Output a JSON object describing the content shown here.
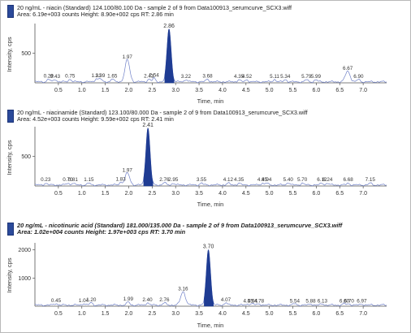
{
  "chart_data": [
    {
      "type": "line",
      "header_line1": "20 ng/mL - niacin (Standard) 124.100/80.100 Da - sample 2 of 9 from Data100913_serumcurve_SCX3.wiff",
      "header_line2": "Area: 6.19e+003 counts  Height: 8.90e+002 cps  RT: 2.86 min",
      "xlabel": "Time, min",
      "ylabel": "Intensity, cps",
      "xlim": [
        0.0,
        7.5
      ],
      "ylim": [
        0,
        1000
      ],
      "x_ticks": [
        "0.5",
        "1.0",
        "1.5",
        "2.0",
        "2.5",
        "3.0",
        "3.5",
        "4.0",
        "4.5",
        "5.0",
        "5.5",
        "6.0",
        "6.5",
        "7.0"
      ],
      "y_ticks": [
        500
      ],
      "main_peak": {
        "rt": 2.86,
        "height": 890,
        "width": 0.1
      },
      "minor_peaks": [
        {
          "x": 0.29,
          "y": 45,
          "label": "0.29"
        },
        {
          "x": 0.43,
          "y": 40,
          "label": "0.43"
        },
        {
          "x": 0.75,
          "y": 45,
          "label": "0.75"
        },
        {
          "x": 1.31,
          "y": 55,
          "label": "1.31"
        },
        {
          "x": 1.39,
          "y": 55,
          "label": "1.39"
        },
        {
          "x": 1.65,
          "y": 50,
          "label": "1.65"
        },
        {
          "x": 1.97,
          "y": 370,
          "label": "1.97"
        },
        {
          "x": 2.43,
          "y": 45,
          "label": "2.43"
        },
        {
          "x": 2.54,
          "y": 60,
          "label": "2.54"
        },
        {
          "x": 3.22,
          "y": 40,
          "label": "3.22"
        },
        {
          "x": 3.68,
          "y": 45,
          "label": "3.68"
        },
        {
          "x": 4.35,
          "y": 35,
          "label": "4.35"
        },
        {
          "x": 4.52,
          "y": 35,
          "label": "4.52"
        },
        {
          "x": 5.11,
          "y": 40,
          "label": "5.11"
        },
        {
          "x": 5.34,
          "y": 40,
          "label": "5.34"
        },
        {
          "x": 5.79,
          "y": 35,
          "label": "5.79"
        },
        {
          "x": 5.99,
          "y": 35,
          "label": "5.99"
        },
        {
          "x": 6.67,
          "y": 180,
          "label": "6.67"
        },
        {
          "x": 6.9,
          "y": 40,
          "label": "6.90"
        }
      ]
    },
    {
      "type": "line",
      "header_line1": "20 ng/mL - niacinamide (Standard) 123.100/80.000 Da - sample 2 of 9 from Data100913_serumcurve_SCX3.wiff",
      "header_line2": "Area: 4.52e+003 counts  Height: 9.59e+002 cps  RT: 2.41 min",
      "xlabel": "Time, min",
      "ylabel": "Intensity, cps",
      "xlim": [
        0.0,
        7.5
      ],
      "ylim": [
        0,
        1000
      ],
      "x_ticks": [
        "0.5",
        "1.0",
        "1.5",
        "2.0",
        "2.5",
        "3.0",
        "3.5",
        "4.0",
        "4.5",
        "5.0",
        "5.5",
        "6.0",
        "6.5",
        "7.0"
      ],
      "y_ticks": [
        500
      ],
      "main_peak": {
        "rt": 2.41,
        "height": 959,
        "width": 0.1
      },
      "minor_peaks": [
        {
          "x": 0.23,
          "y": 30,
          "label": "0.23"
        },
        {
          "x": 0.7,
          "y": 30,
          "label": "0.70"
        },
        {
          "x": 0.81,
          "y": 30,
          "label": "0.81"
        },
        {
          "x": 1.15,
          "y": 30,
          "label": "1.15"
        },
        {
          "x": 1.83,
          "y": 45,
          "label": "1.83"
        },
        {
          "x": 1.97,
          "y": 200,
          "label": "1.97"
        },
        {
          "x": 2.76,
          "y": 40,
          "label": "2.76"
        },
        {
          "x": 2.95,
          "y": 30,
          "label": "2.95"
        },
        {
          "x": 3.55,
          "y": 30,
          "label": "3.55"
        },
        {
          "x": 4.12,
          "y": 30,
          "label": "4.12"
        },
        {
          "x": 4.35,
          "y": 30,
          "label": "4.35"
        },
        {
          "x": 4.85,
          "y": 30,
          "label": "4.85"
        },
        {
          "x": 4.94,
          "y": 30,
          "label": "4.94"
        },
        {
          "x": 5.4,
          "y": 40,
          "label": "5.40"
        },
        {
          "x": 5.7,
          "y": 30,
          "label": "5.70"
        },
        {
          "x": 6.12,
          "y": 30,
          "label": "6.12"
        },
        {
          "x": 6.24,
          "y": 30,
          "label": "6.24"
        },
        {
          "x": 6.68,
          "y": 30,
          "label": "6.68"
        },
        {
          "x": 7.15,
          "y": 30,
          "label": "7.15"
        }
      ]
    },
    {
      "type": "line",
      "header_line1": "20 ng/mL - nicotinuric acid (Standard) 181.000/135.000 Da - sample 2 of 9 from Data100913_serumcurve_SCX3.wiff",
      "header_line2": "Area: 1.02e+004 counts  Height: 1.97e+003 cps  RT: 3.70 min",
      "xlabel": "Time, min",
      "ylabel": "Intensity, cps",
      "xlim": [
        0.0,
        7.5
      ],
      "ylim": [
        0,
        2250
      ],
      "x_ticks": [
        "0.5",
        "1.0",
        "1.5",
        "2.0",
        "2.5",
        "3.0",
        "3.5",
        "4.0",
        "4.5",
        "5.0",
        "5.5",
        "6.0",
        "6.5",
        "7.0"
      ],
      "y_ticks": [
        1000,
        2000
      ],
      "main_peak": {
        "rt": 3.7,
        "height": 1970,
        "width": 0.1
      },
      "minor_peaks": [
        {
          "x": 0.45,
          "y": 60,
          "label": "0.45"
        },
        {
          "x": 1.04,
          "y": 60,
          "label": "1.04"
        },
        {
          "x": 1.2,
          "y": 80,
          "label": "1.20"
        },
        {
          "x": 1.99,
          "y": 110,
          "label": "1.99"
        },
        {
          "x": 2.4,
          "y": 90,
          "label": "2.40"
        },
        {
          "x": 2.76,
          "y": 80,
          "label": "2.76"
        },
        {
          "x": 3.16,
          "y": 480,
          "label": "3.16"
        },
        {
          "x": 4.07,
          "y": 90,
          "label": "4.07"
        },
        {
          "x": 4.55,
          "y": 50,
          "label": "4.55"
        },
        {
          "x": 4.64,
          "y": 50,
          "label": "4.64"
        },
        {
          "x": 4.78,
          "y": 50,
          "label": "4.78"
        },
        {
          "x": 5.54,
          "y": 50,
          "label": "5.54"
        },
        {
          "x": 5.88,
          "y": 50,
          "label": "5.88"
        },
        {
          "x": 6.13,
          "y": 50,
          "label": "6.13"
        },
        {
          "x": 6.6,
          "y": 50,
          "label": "6.60"
        },
        {
          "x": 6.7,
          "y": 50,
          "label": "6.70"
        },
        {
          "x": 6.97,
          "y": 40,
          "label": "6.97"
        }
      ]
    }
  ],
  "colors": {
    "trace": "#6f80c8",
    "peak_fill": "#1f3c93",
    "axis": "#555555",
    "label": "#333333"
  }
}
